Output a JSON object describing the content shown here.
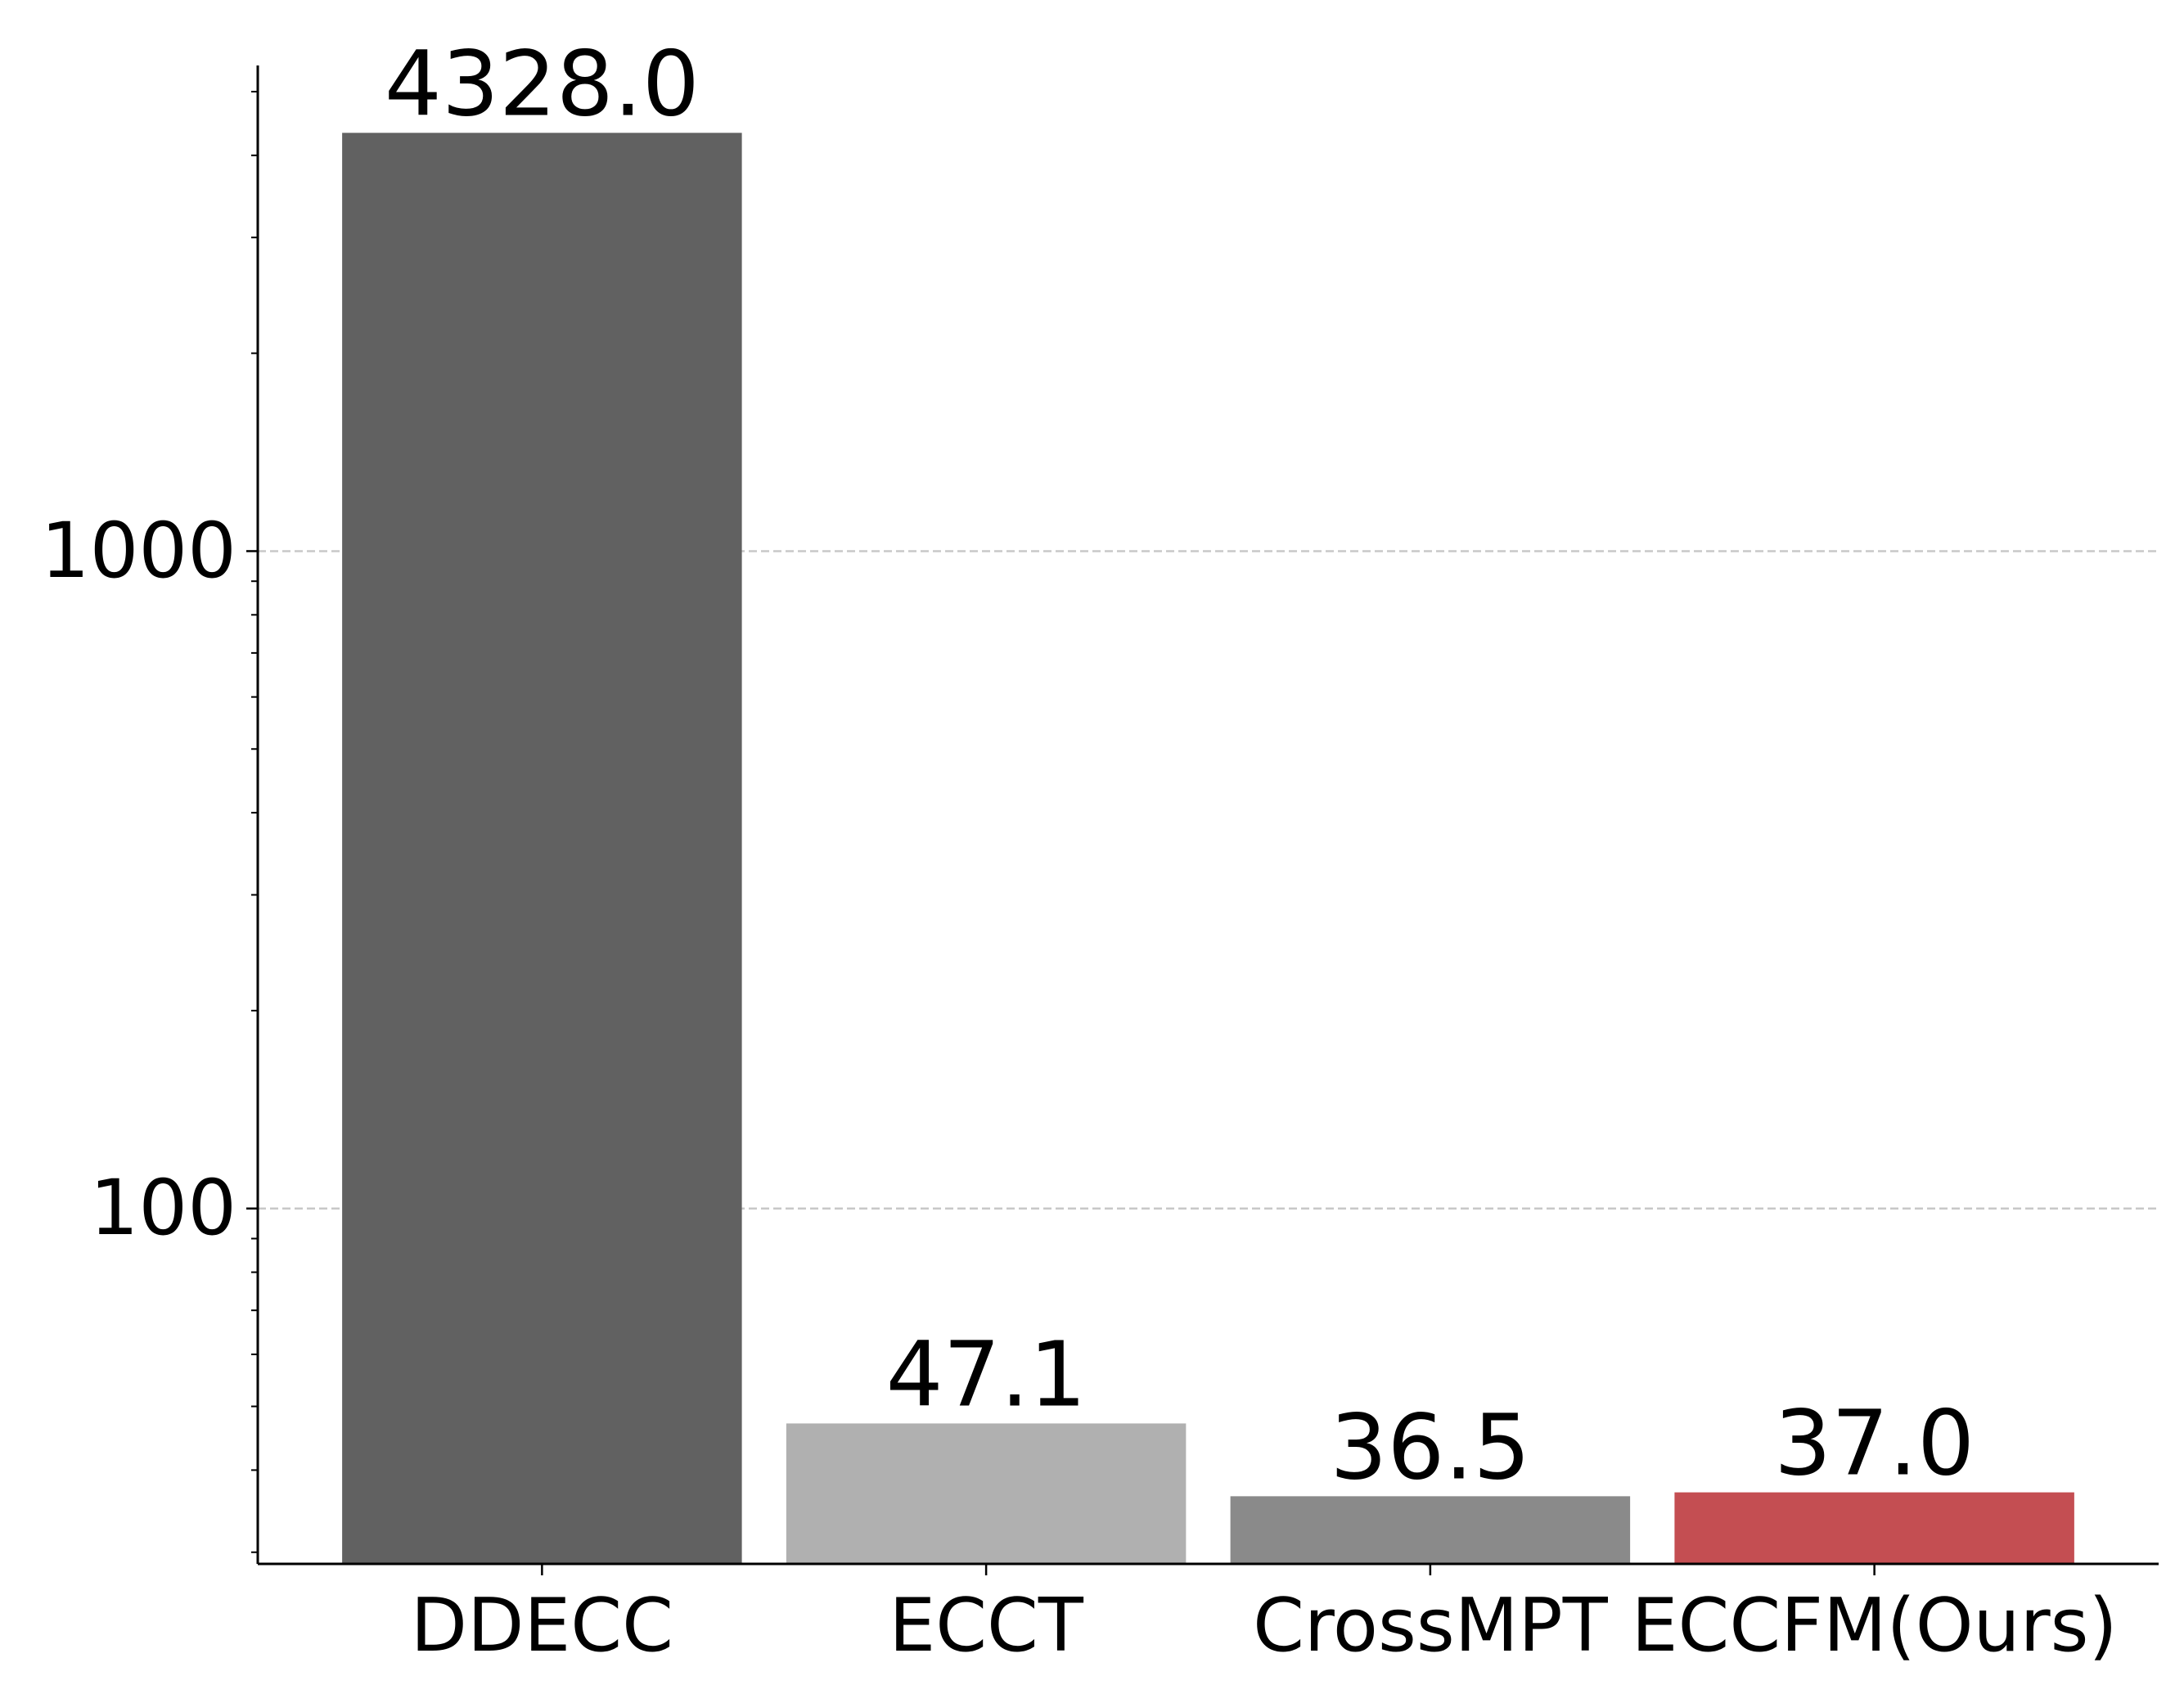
{
  "chart_data": {
    "type": "bar",
    "categories": [
      "DDECC",
      "ECCT",
      "CrossMPT",
      "ECCFM(Ours)"
    ],
    "values": [
      4328,
      47.1,
      36.5,
      37
    ],
    "value_labels": [
      "4328.0",
      "47.1",
      "36.5",
      "37.0"
    ],
    "colors": [
      "#616161",
      "#b0b0b0",
      "#8a8a8a",
      "#c44e52"
    ],
    "log_scale": true,
    "ylim": [
      28.8,
      5480
    ],
    "yticks": [
      100,
      1000
    ],
    "grid": true
  }
}
